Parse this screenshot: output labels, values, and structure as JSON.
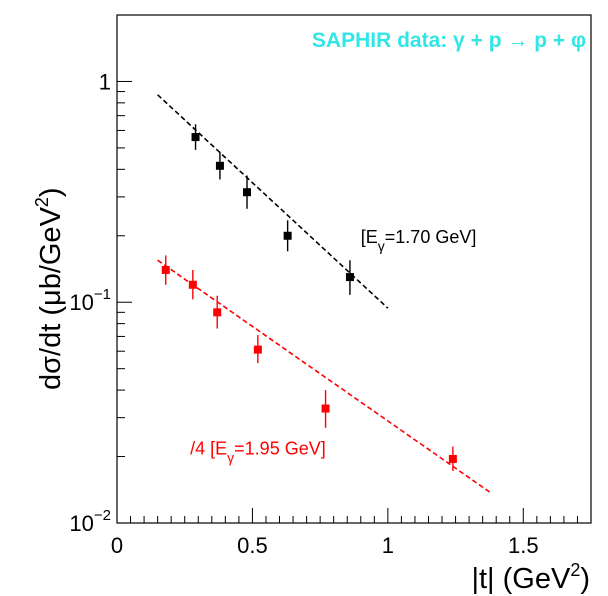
{
  "chart_data": {
    "type": "scatter",
    "title": "SAPHIR data: γ + p → p + φ",
    "title_color": "#33e5e5",
    "xlabel": "|t| (GeV",
    "xlabel_sup": "2",
    "xlabel_tail": ")",
    "ylabel": "dσ/dt (μb/GeV",
    "ylabel_sup": "2",
    "ylabel_tail": ")",
    "xlim": [
      0,
      1.75
    ],
    "ylim": [
      0.01,
      2
    ],
    "yscale": "log",
    "grid": false,
    "x_ticks": [
      {
        "value": 0,
        "label": "0"
      },
      {
        "value": 0.5,
        "label": "0.5"
      },
      {
        "value": 1,
        "label": "1"
      },
      {
        "value": 1.5,
        "label": "1.5"
      }
    ],
    "y_ticks": [
      {
        "value": 0.01,
        "base": "10",
        "exp": "−2"
      },
      {
        "value": 0.1,
        "base": "10",
        "exp": "−1"
      },
      {
        "value": 1,
        "base": "",
        "exp": "",
        "label": "1"
      }
    ],
    "series": [
      {
        "color": "#000000",
        "points": [
          {
            "x": 0.29,
            "y": 0.56,
            "ylo": 0.49,
            "yhi": 0.64
          },
          {
            "x": 0.38,
            "y": 0.415,
            "ylo": 0.36,
            "yhi": 0.48
          },
          {
            "x": 0.48,
            "y": 0.315,
            "ylo": 0.265,
            "yhi": 0.375
          },
          {
            "x": 0.63,
            "y": 0.2,
            "ylo": 0.17,
            "yhi": 0.235
          },
          {
            "x": 0.86,
            "y": 0.13,
            "ylo": 0.108,
            "yhi": 0.155
          }
        ],
        "fit": {
          "x": [
            0.15,
            1.0
          ],
          "y": [
            0.87,
            0.094
          ]
        },
        "annotation": {
          "prefix": "[E",
          "sub": "γ",
          "suffix": "=1.70 GeV]",
          "x": 0.9,
          "y": 0.2
        }
      },
      {
        "color": "#ff0000",
        "points": [
          {
            "x": 0.18,
            "y": 0.14,
            "ylo": 0.12,
            "yhi": 0.163
          },
          {
            "x": 0.28,
            "y": 0.12,
            "ylo": 0.103,
            "yhi": 0.14
          },
          {
            "x": 0.37,
            "y": 0.09,
            "ylo": 0.076,
            "yhi": 0.107
          },
          {
            "x": 0.52,
            "y": 0.061,
            "ylo": 0.053,
            "yhi": 0.071
          },
          {
            "x": 0.77,
            "y": 0.033,
            "ylo": 0.027,
            "yhi": 0.04
          },
          {
            "x": 1.24,
            "y": 0.0195,
            "ylo": 0.0172,
            "yhi": 0.0222
          }
        ],
        "fit": {
          "x": [
            0.15,
            1.38
          ],
          "y": [
            0.155,
            0.0137
          ]
        },
        "annotation": {
          "prefix": "/4 [E",
          "sub": "γ",
          "suffix": "=1.95 GeV]",
          "x": 0.27,
          "y": 0.022
        }
      }
    ]
  }
}
